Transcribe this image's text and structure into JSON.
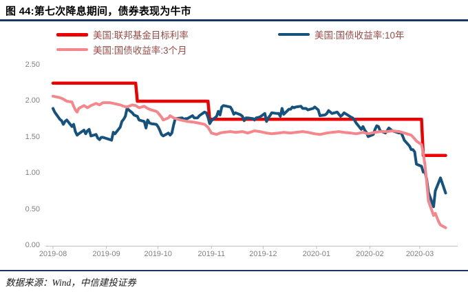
{
  "title": "图 44:第七次降息期间，债券表现为牛市",
  "footer": {
    "source_text": "数据来源：Wind，中信建投证券"
  },
  "colors": {
    "accent_rule": "#17375E",
    "fed_funds_line": "#EE0000",
    "us10y_line": "#16527E",
    "us3m_line": "#F5868B",
    "legend_text": "#9C4A45",
    "axis_text": "#7F7F7F",
    "axis_line": "#BFBFBF"
  },
  "chart_data": {
    "type": "line",
    "title": "图 44:第七次降息期间，债券表现为牛市",
    "ylabel": "",
    "xlabel": "",
    "ylim": [
      0.0,
      2.5
    ],
    "grid": false,
    "legend_position": "top",
    "y_tick_labels": [
      "2.50",
      "2.00",
      "1.50",
      "1.00",
      "0.50",
      "0.00"
    ],
    "y_tick_values": [
      2.5,
      2.0,
      1.5,
      1.0,
      0.5,
      0.0
    ],
    "x_tick_labels": [
      "2019-08",
      "2019-09",
      "2019-10",
      "2019-11",
      "2019-12",
      "2020-01",
      "2020-02",
      "2020-03"
    ],
    "x_tick_dates": [
      "2019-08-01",
      "2019-09-01",
      "2019-10-01",
      "2019-11-01",
      "2019-12-01",
      "2020-01-01",
      "2020-02-01",
      "2020-03-01"
    ],
    "x_range": [
      "2019-08-01",
      "2020-03-17"
    ],
    "series": [
      {
        "name": "美国:联邦基金目标利率",
        "color": "#EE0000",
        "width": 4.5,
        "points": [
          [
            "2019-08-01",
            2.25
          ],
          [
            "2019-09-18",
            2.25
          ],
          [
            "2019-09-19",
            2.0
          ],
          [
            "2019-10-30",
            2.0
          ],
          [
            "2019-10-31",
            1.75
          ],
          [
            "2020-03-02",
            1.75
          ],
          [
            "2020-03-03",
            1.25
          ],
          [
            "2020-03-16",
            1.25
          ]
        ]
      },
      {
        "name": "美国:国债收益率:10年",
        "color": "#16527E",
        "width": 4,
        "points": [
          [
            "2019-08-01",
            1.9
          ],
          [
            "2019-08-02",
            1.85
          ],
          [
            "2019-08-05",
            1.75
          ],
          [
            "2019-08-06",
            1.73
          ],
          [
            "2019-08-07",
            1.68
          ],
          [
            "2019-08-08",
            1.72
          ],
          [
            "2019-08-09",
            1.74
          ],
          [
            "2019-08-12",
            1.65
          ],
          [
            "2019-08-13",
            1.68
          ],
          [
            "2019-08-14",
            1.58
          ],
          [
            "2019-08-15",
            1.53
          ],
          [
            "2019-08-16",
            1.55
          ],
          [
            "2019-08-19",
            1.6
          ],
          [
            "2019-08-20",
            1.55
          ],
          [
            "2019-08-21",
            1.59
          ],
          [
            "2019-08-22",
            1.61
          ],
          [
            "2019-08-23",
            1.52
          ],
          [
            "2019-08-26",
            1.54
          ],
          [
            "2019-08-27",
            1.49
          ],
          [
            "2019-08-28",
            1.47
          ],
          [
            "2019-08-29",
            1.5
          ],
          [
            "2019-08-30",
            1.5
          ],
          [
            "2019-09-03",
            1.47
          ],
          [
            "2019-09-04",
            1.46
          ],
          [
            "2019-09-05",
            1.57
          ],
          [
            "2019-09-06",
            1.55
          ],
          [
            "2019-09-09",
            1.64
          ],
          [
            "2019-09-10",
            1.72
          ],
          [
            "2019-09-11",
            1.75
          ],
          [
            "2019-09-12",
            1.79
          ],
          [
            "2019-09-13",
            1.9
          ],
          [
            "2019-09-16",
            1.84
          ],
          [
            "2019-09-17",
            1.81
          ],
          [
            "2019-09-18",
            1.8
          ],
          [
            "2019-09-19",
            1.79
          ],
          [
            "2019-09-20",
            1.74
          ],
          [
            "2019-09-23",
            1.72
          ],
          [
            "2019-09-24",
            1.63
          ],
          [
            "2019-09-25",
            1.74
          ],
          [
            "2019-09-26",
            1.7
          ],
          [
            "2019-09-27",
            1.69
          ],
          [
            "2019-09-30",
            1.68
          ],
          [
            "2019-10-01",
            1.65
          ],
          [
            "2019-10-02",
            1.6
          ],
          [
            "2019-10-03",
            1.54
          ],
          [
            "2019-10-04",
            1.52
          ],
          [
            "2019-10-07",
            1.56
          ],
          [
            "2019-10-08",
            1.53
          ],
          [
            "2019-10-09",
            1.56
          ],
          [
            "2019-10-10",
            1.67
          ],
          [
            "2019-10-11",
            1.76
          ],
          [
            "2019-10-15",
            1.77
          ],
          [
            "2019-10-16",
            1.75
          ],
          [
            "2019-10-17",
            1.76
          ],
          [
            "2019-10-18",
            1.76
          ],
          [
            "2019-10-21",
            1.8
          ],
          [
            "2019-10-22",
            1.77
          ],
          [
            "2019-10-23",
            1.77
          ],
          [
            "2019-10-24",
            1.77
          ],
          [
            "2019-10-25",
            1.8
          ],
          [
            "2019-10-28",
            1.85
          ],
          [
            "2019-10-29",
            1.84
          ],
          [
            "2019-10-30",
            1.78
          ],
          [
            "2019-10-31",
            1.69
          ],
          [
            "2019-11-01",
            1.73
          ],
          [
            "2019-11-04",
            1.79
          ],
          [
            "2019-11-05",
            1.86
          ],
          [
            "2019-11-06",
            1.81
          ],
          [
            "2019-11-07",
            1.92
          ],
          [
            "2019-11-08",
            1.94
          ],
          [
            "2019-11-12",
            1.92
          ],
          [
            "2019-11-13",
            1.88
          ],
          [
            "2019-11-14",
            1.82
          ],
          [
            "2019-11-15",
            1.84
          ],
          [
            "2019-11-18",
            1.81
          ],
          [
            "2019-11-19",
            1.79
          ],
          [
            "2019-11-20",
            1.73
          ],
          [
            "2019-11-21",
            1.77
          ],
          [
            "2019-11-22",
            1.77
          ],
          [
            "2019-11-25",
            1.76
          ],
          [
            "2019-11-26",
            1.74
          ],
          [
            "2019-11-27",
            1.77
          ],
          [
            "2019-11-29",
            1.78
          ],
          [
            "2019-12-02",
            1.83
          ],
          [
            "2019-12-03",
            1.72
          ],
          [
            "2019-12-04",
            1.77
          ],
          [
            "2019-12-05",
            1.8
          ],
          [
            "2019-12-06",
            1.84
          ],
          [
            "2019-12-09",
            1.83
          ],
          [
            "2019-12-10",
            1.83
          ],
          [
            "2019-12-11",
            1.79
          ],
          [
            "2019-12-12",
            1.9
          ],
          [
            "2019-12-13",
            1.82
          ],
          [
            "2019-12-16",
            1.89
          ],
          [
            "2019-12-17",
            1.89
          ],
          [
            "2019-12-18",
            1.92
          ],
          [
            "2019-12-19",
            1.91
          ],
          [
            "2019-12-20",
            1.92
          ],
          [
            "2019-12-23",
            1.93
          ],
          [
            "2019-12-24",
            1.9
          ],
          [
            "2019-12-26",
            1.9
          ],
          [
            "2019-12-27",
            1.88
          ],
          [
            "2019-12-30",
            1.9
          ],
          [
            "2019-12-31",
            1.92
          ],
          [
            "2020-01-02",
            1.88
          ],
          [
            "2020-01-03",
            1.8
          ],
          [
            "2020-01-06",
            1.81
          ],
          [
            "2020-01-07",
            1.83
          ],
          [
            "2020-01-08",
            1.87
          ],
          [
            "2020-01-09",
            1.85
          ],
          [
            "2020-01-10",
            1.83
          ],
          [
            "2020-01-13",
            1.85
          ],
          [
            "2020-01-14",
            1.82
          ],
          [
            "2020-01-15",
            1.79
          ],
          [
            "2020-01-16",
            1.81
          ],
          [
            "2020-01-17",
            1.84
          ],
          [
            "2020-01-21",
            1.78
          ],
          [
            "2020-01-22",
            1.77
          ],
          [
            "2020-01-23",
            1.74
          ],
          [
            "2020-01-24",
            1.7
          ],
          [
            "2020-01-27",
            1.61
          ],
          [
            "2020-01-28",
            1.65
          ],
          [
            "2020-01-29",
            1.6
          ],
          [
            "2020-01-30",
            1.57
          ],
          [
            "2020-01-31",
            1.51
          ],
          [
            "2020-02-03",
            1.54
          ],
          [
            "2020-02-04",
            1.61
          ],
          [
            "2020-02-05",
            1.66
          ],
          [
            "2020-02-06",
            1.65
          ],
          [
            "2020-02-07",
            1.59
          ],
          [
            "2020-02-10",
            1.56
          ],
          [
            "2020-02-11",
            1.59
          ],
          [
            "2020-02-12",
            1.63
          ],
          [
            "2020-02-13",
            1.61
          ],
          [
            "2020-02-14",
            1.59
          ],
          [
            "2020-02-18",
            1.56
          ],
          [
            "2020-02-19",
            1.57
          ],
          [
            "2020-02-20",
            1.52
          ],
          [
            "2020-02-21",
            1.46
          ],
          [
            "2020-02-24",
            1.38
          ],
          [
            "2020-02-25",
            1.33
          ],
          [
            "2020-02-26",
            1.33
          ],
          [
            "2020-02-27",
            1.3
          ],
          [
            "2020-02-28",
            1.13
          ],
          [
            "2020-03-02",
            1.1
          ],
          [
            "2020-03-03",
            1.02
          ],
          [
            "2020-03-04",
            1.02
          ],
          [
            "2020-03-05",
            0.92
          ],
          [
            "2020-03-06",
            0.74
          ],
          [
            "2020-03-09",
            0.54
          ],
          [
            "2020-03-10",
            0.76
          ],
          [
            "2020-03-11",
            0.82
          ],
          [
            "2020-03-12",
            0.88
          ],
          [
            "2020-03-13",
            0.94
          ],
          [
            "2020-03-16",
            0.73
          ]
        ]
      },
      {
        "name": "美国:国债收益率:3个月",
        "color": "#F5868B",
        "width": 4,
        "points": [
          [
            "2019-08-01",
            2.07
          ],
          [
            "2019-08-05",
            2.05
          ],
          [
            "2019-08-07",
            2.03
          ],
          [
            "2019-08-09",
            2.0
          ],
          [
            "2019-08-12",
            1.99
          ],
          [
            "2019-08-13",
            1.93
          ],
          [
            "2019-08-14",
            1.88
          ],
          [
            "2019-08-15",
            1.85
          ],
          [
            "2019-08-16",
            1.9
          ],
          [
            "2019-08-19",
            1.94
          ],
          [
            "2019-08-21",
            1.91
          ],
          [
            "2019-08-23",
            1.94
          ],
          [
            "2019-08-26",
            1.97
          ],
          [
            "2019-08-28",
            1.95
          ],
          [
            "2019-08-30",
            1.98
          ],
          [
            "2019-09-03",
            1.98
          ],
          [
            "2019-09-05",
            1.97
          ],
          [
            "2019-09-09",
            1.95
          ],
          [
            "2019-09-11",
            1.93
          ],
          [
            "2019-09-13",
            1.92
          ],
          [
            "2019-09-16",
            1.95
          ],
          [
            "2019-09-18",
            1.94
          ],
          [
            "2019-09-20",
            1.91
          ],
          [
            "2019-09-23",
            1.93
          ],
          [
            "2019-09-25",
            1.9
          ],
          [
            "2019-09-27",
            1.88
          ],
          [
            "2019-09-30",
            1.86
          ],
          [
            "2019-10-01",
            1.84
          ],
          [
            "2019-10-03",
            1.78
          ],
          [
            "2019-10-04",
            1.74
          ],
          [
            "2019-10-07",
            1.77
          ],
          [
            "2019-10-08",
            1.8
          ],
          [
            "2019-10-10",
            1.77
          ],
          [
            "2019-10-14",
            1.74
          ],
          [
            "2019-10-16",
            1.73
          ],
          [
            "2019-10-18",
            1.72
          ],
          [
            "2019-10-22",
            1.71
          ],
          [
            "2019-10-24",
            1.7
          ],
          [
            "2019-10-28",
            1.68
          ],
          [
            "2019-10-30",
            1.64
          ],
          [
            "2019-10-31",
            1.6
          ],
          [
            "2019-11-01",
            1.56
          ],
          [
            "2019-11-04",
            1.54
          ],
          [
            "2019-11-06",
            1.56
          ],
          [
            "2019-11-08",
            1.57
          ],
          [
            "2019-11-12",
            1.58
          ],
          [
            "2019-11-15",
            1.57
          ],
          [
            "2019-11-19",
            1.58
          ],
          [
            "2019-11-22",
            1.56
          ],
          [
            "2019-11-26",
            1.59
          ],
          [
            "2019-11-29",
            1.58
          ],
          [
            "2019-12-03",
            1.56
          ],
          [
            "2019-12-06",
            1.55
          ],
          [
            "2019-12-10",
            1.56
          ],
          [
            "2019-12-13",
            1.57
          ],
          [
            "2019-12-17",
            1.56
          ],
          [
            "2019-12-20",
            1.57
          ],
          [
            "2019-12-24",
            1.58
          ],
          [
            "2019-12-27",
            1.57
          ],
          [
            "2019-12-31",
            1.55
          ],
          [
            "2020-01-03",
            1.54
          ],
          [
            "2020-01-07",
            1.56
          ],
          [
            "2020-01-10",
            1.57
          ],
          [
            "2020-01-14",
            1.58
          ],
          [
            "2020-01-17",
            1.57
          ],
          [
            "2020-01-21",
            1.56
          ],
          [
            "2020-01-24",
            1.55
          ],
          [
            "2020-01-28",
            1.57
          ],
          [
            "2020-01-31",
            1.55
          ],
          [
            "2020-02-04",
            1.57
          ],
          [
            "2020-02-07",
            1.58
          ],
          [
            "2020-02-11",
            1.58
          ],
          [
            "2020-02-14",
            1.59
          ],
          [
            "2020-02-18",
            1.58
          ],
          [
            "2020-02-21",
            1.56
          ],
          [
            "2020-02-25",
            1.53
          ],
          [
            "2020-02-27",
            1.48
          ],
          [
            "2020-02-28",
            1.45
          ],
          [
            "2020-03-02",
            1.4
          ],
          [
            "2020-03-03",
            1.28
          ],
          [
            "2020-03-04",
            1.12
          ],
          [
            "2020-03-05",
            0.88
          ],
          [
            "2020-03-06",
            0.62
          ],
          [
            "2020-03-09",
            0.42
          ],
          [
            "2020-03-10",
            0.45
          ],
          [
            "2020-03-11",
            0.39
          ],
          [
            "2020-03-12",
            0.33
          ],
          [
            "2020-03-13",
            0.29
          ],
          [
            "2020-03-16",
            0.25
          ]
        ]
      }
    ]
  }
}
